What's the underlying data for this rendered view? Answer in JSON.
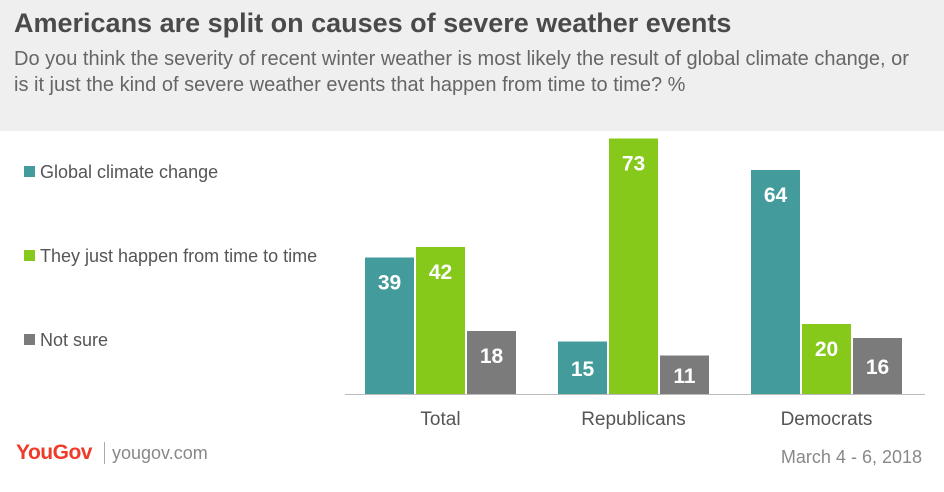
{
  "header": {
    "title": "Americans are split on causes of severe weather events",
    "subtitle": "Do you think the severity of recent winter weather is most likely the result of global climate change, or is it just the kind of severe weather events that happen from time to time? %"
  },
  "footer": {
    "logo": "YouGov",
    "url": "yougov.com",
    "date": "March 4 - 6, 2018"
  },
  "chart_data": {
    "type": "bar",
    "categories": [
      "Total",
      "Republicans",
      "Democrats"
    ],
    "series": [
      {
        "name": "Global climate change",
        "values": [
          39,
          15,
          64
        ],
        "color": "#449b9b"
      },
      {
        "name": "They just happen from time to time",
        "values": [
          42,
          73,
          20
        ],
        "color": "#86c91b"
      },
      {
        "name": "Not sure",
        "values": [
          18,
          11,
          16
        ],
        "color": "#7b7b7b"
      }
    ],
    "ylim": [
      0,
      80
    ],
    "grid": false,
    "legend_position": "left",
    "data_labels": true
  }
}
